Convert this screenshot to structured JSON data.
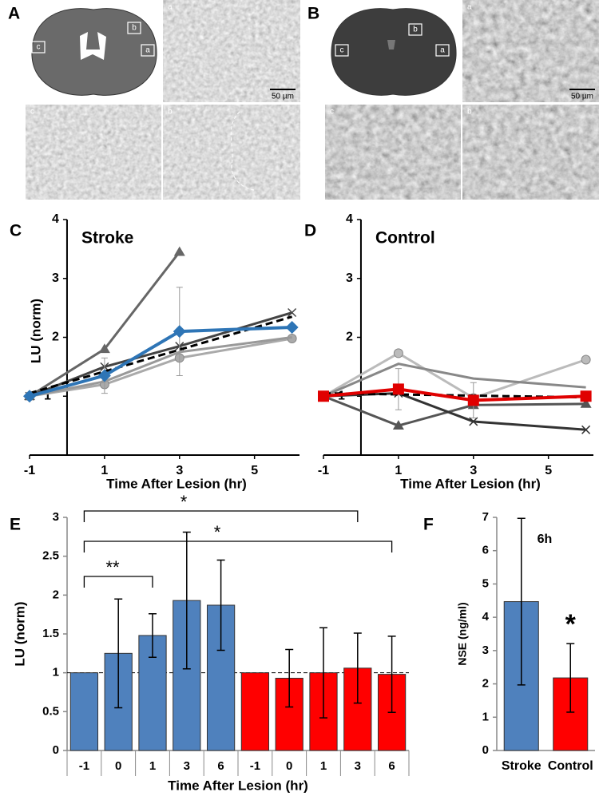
{
  "micrographs": [
    {
      "label": "A",
      "insets": [
        "a",
        "b",
        "c"
      ],
      "scale_bar": "50 µm"
    },
    {
      "label": "B",
      "insets": [
        "a",
        "b",
        "c"
      ],
      "scale_bar": "50 µm"
    }
  ],
  "chart_data": [
    {
      "type": "line",
      "label": "C",
      "title": "Stroke",
      "x": [
        -1,
        1,
        3,
        6
      ],
      "xlim": [
        -1,
        6.2
      ],
      "xticks": [
        -1,
        1,
        3,
        5
      ],
      "ylim": [
        0,
        4
      ],
      "yticks": [
        1,
        2,
        3,
        4
      ],
      "xlabel": "Time After Lesion (hr)",
      "ylabel": "LU (norm)",
      "series": [
        {
          "color": "#666666",
          "marker": "triangle",
          "values": [
            1.0,
            1.8,
            3.45,
            null
          ]
        },
        {
          "color": "#444444",
          "marker": "x",
          "values": [
            1.0,
            1.5,
            1.85,
            2.42
          ]
        },
        {
          "color": "#aaaaaa",
          "marker": "circle",
          "values": [
            1.0,
            1.2,
            1.65,
            1.98
          ]
        },
        {
          "color": "#999999",
          "marker": "none",
          "values": [
            1.0,
            1.25,
            1.75,
            2.0
          ]
        },
        {
          "color": "#000000",
          "marker": "none",
          "dashed": true,
          "values": [
            1.05,
            1.42,
            1.79,
            2.35
          ]
        },
        {
          "color": "#2e75b6",
          "marker": "diamond",
          "values": [
            1.0,
            1.35,
            2.1,
            2.17
          ],
          "errors": [
            null,
            0.3,
            0.75,
            null
          ]
        }
      ]
    },
    {
      "type": "line",
      "label": "D",
      "title": "Control",
      "x": [
        -1,
        1,
        3,
        6
      ],
      "xlim": [
        -1,
        6.2
      ],
      "xticks": [
        -1,
        1,
        3,
        5
      ],
      "ylim": [
        0,
        4
      ],
      "yticks": [
        1,
        2,
        3,
        4
      ],
      "xlabel": "Time After Lesion (hr)",
      "series": [
        {
          "color": "#bbbbbb",
          "marker": "circle",
          "values": [
            1.0,
            1.73,
            0.97,
            1.62
          ]
        },
        {
          "color": "#888888",
          "marker": "none",
          "values": [
            1.0,
            1.55,
            1.3,
            1.15
          ]
        },
        {
          "color": "#555555",
          "marker": "triangle",
          "values": [
            1.0,
            0.5,
            0.85,
            0.87
          ]
        },
        {
          "color": "#333333",
          "marker": "x",
          "values": [
            1.0,
            1.05,
            0.57,
            0.43
          ]
        },
        {
          "color": "#000000",
          "marker": "none",
          "dashed": true,
          "values": [
            1.05,
            1.03,
            1.01,
            0.98
          ]
        },
        {
          "color": "#e00000",
          "marker": "square",
          "values": [
            1.0,
            1.12,
            0.93,
            1.0
          ],
          "errors": [
            null,
            0.35,
            0.3,
            null
          ]
        }
      ]
    },
    {
      "type": "bar",
      "label": "E",
      "xlabel": "Time After Lesion (hr)",
      "ylabel": "LU (norm)",
      "categories": [
        "-1",
        "0",
        "1",
        "3",
        "6",
        "-1",
        "0",
        "1",
        "3",
        "6"
      ],
      "values": [
        1.0,
        1.25,
        1.48,
        1.93,
        1.87,
        1.0,
        0.93,
        1.0,
        1.06,
        0.98
      ],
      "errors": [
        null,
        0.7,
        0.28,
        0.88,
        0.58,
        null,
        0.37,
        0.58,
        0.45,
        0.49
      ],
      "colors": [
        "#4f81bd",
        "#4f81bd",
        "#4f81bd",
        "#4f81bd",
        "#4f81bd",
        "#ff0000",
        "#ff0000",
        "#ff0000",
        "#ff0000",
        "#ff0000"
      ],
      "ylim": [
        0,
        3
      ],
      "yticks": [
        0,
        0.5,
        1,
        1.5,
        2,
        2.5,
        3
      ],
      "reference_line": 1,
      "brackets": [
        {
          "from": 0,
          "to": 2,
          "label": "**"
        },
        {
          "from": 0,
          "to": 8,
          "label": "*"
        },
        {
          "from": 0,
          "to": 9,
          "label": "*"
        }
      ]
    },
    {
      "type": "bar",
      "label": "F",
      "title": "6h",
      "ylabel": "NSE (ng/ml)",
      "categories": [
        "Stroke",
        "Control"
      ],
      "values": [
        4.47,
        2.18
      ],
      "errors": [
        2.5,
        1.03
      ],
      "colors": [
        "#4f81bd",
        "#ff0000"
      ],
      "ylim": [
        0,
        7
      ],
      "yticks": [
        0,
        1,
        2,
        3,
        4,
        5,
        6,
        7
      ],
      "annotations": [
        {
          "text": "*",
          "index": 1
        }
      ]
    }
  ]
}
